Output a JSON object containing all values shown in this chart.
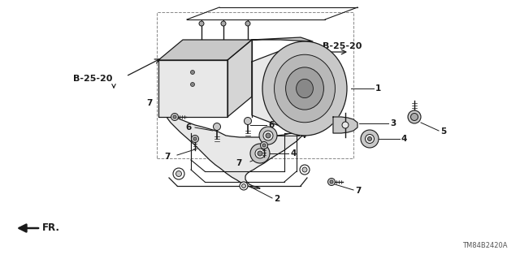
{
  "bg_color": "#ffffff",
  "line_color": "#1a1a1a",
  "gray_fill": "#e8e8e8",
  "gray_mid": "#c8c8c8",
  "gray_dark": "#a0a0a0",
  "labels": {
    "b2520_left": "B-25-20",
    "b2520_right": "B-25-20",
    "fr": "FR.",
    "diagram_code": "TM84B2420A",
    "1": "1",
    "2": "2",
    "3": "3",
    "4": "4",
    "5": "5",
    "6": "6",
    "7": "7"
  },
  "figsize": [
    6.4,
    3.19
  ],
  "dpi": 100
}
